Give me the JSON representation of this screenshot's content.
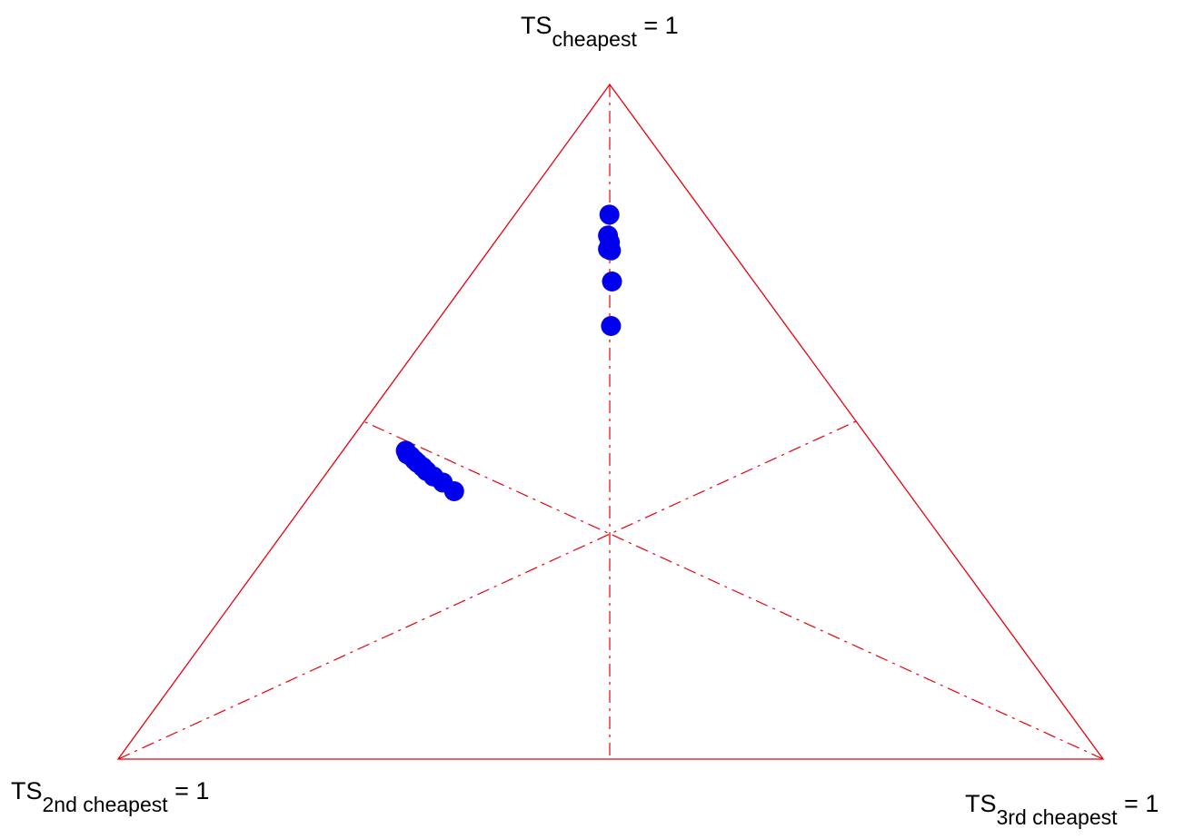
{
  "chart_data": {
    "type": "scatter",
    "subtype": "ternary",
    "vertices": [
      {
        "id": "top",
        "label_main": "TS",
        "label_sub": "cheapest",
        "label_tail": " = 1"
      },
      {
        "id": "bottom-left",
        "label_main": "TS",
        "label_sub": "2nd cheapest",
        "label_tail": " = 1"
      },
      {
        "id": "bottom-right",
        "label_main": "TS",
        "label_sub": "3rd cheapest",
        "label_tail": " = 1"
      }
    ],
    "components": [
      "TS cheapest",
      "TS 2nd cheapest",
      "TS 3rd cheapest"
    ],
    "reference_lines": "medians",
    "grid": false,
    "legend": "none",
    "colors": {
      "frame": "#e8000b",
      "points": "#0000ee"
    },
    "points": [
      {
        "cheapest": 0.807,
        "second": 0.097,
        "third": 0.096
      },
      {
        "cheapest": 0.776,
        "second": 0.114,
        "third": 0.11
      },
      {
        "cheapest": 0.766,
        "second": 0.117,
        "third": 0.117
      },
      {
        "cheapest": 0.754,
        "second": 0.122,
        "third": 0.124
      },
      {
        "cheapest": 0.756,
        "second": 0.124,
        "third": 0.12
      },
      {
        "cheapest": 0.708,
        "second": 0.144,
        "third": 0.148
      },
      {
        "cheapest": 0.642,
        "second": 0.178,
        "third": 0.18
      },
      {
        "cheapest": 0.457,
        "second": 0.479,
        "third": 0.064
      },
      {
        "cheapest": 0.452,
        "second": 0.48,
        "third": 0.068
      },
      {
        "cheapest": 0.449,
        "second": 0.478,
        "third": 0.073
      },
      {
        "cheapest": 0.443,
        "second": 0.477,
        "third": 0.08
      },
      {
        "cheapest": 0.439,
        "second": 0.476,
        "third": 0.085
      },
      {
        "cheapest": 0.433,
        "second": 0.474,
        "third": 0.093
      },
      {
        "cheapest": 0.427,
        "second": 0.473,
        "third": 0.1
      },
      {
        "cheapest": 0.419,
        "second": 0.47,
        "third": 0.111
      },
      {
        "cheapest": 0.41,
        "second": 0.465,
        "third": 0.125
      },
      {
        "cheapest": 0.397,
        "second": 0.46,
        "third": 0.143
      }
    ]
  }
}
